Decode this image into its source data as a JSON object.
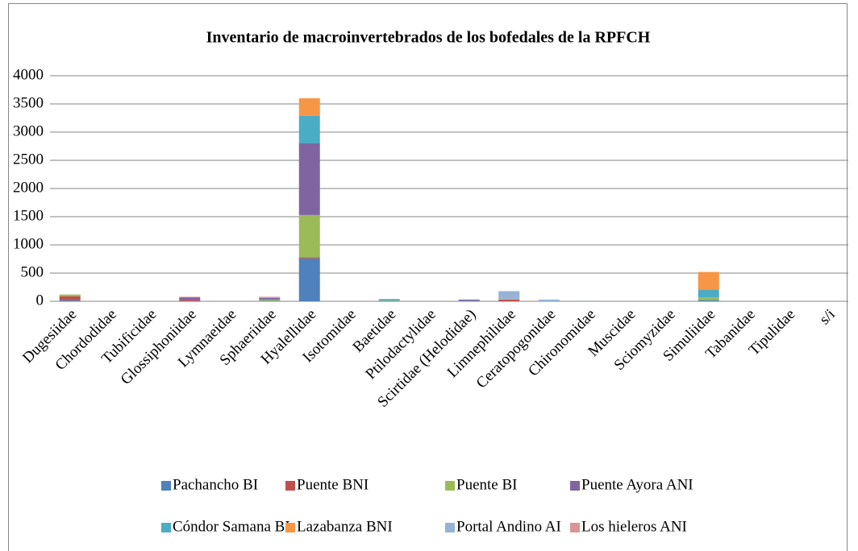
{
  "chart_data": {
    "type": "stacked_bar",
    "title": "Inventario de macroinvertebrados de los bofedales de la RPFCH",
    "categories": [
      "Dugesiidae",
      "Chordodidae",
      "Tubificidae",
      "Glossiphoniidae",
      "Lymnaeidae",
      "Sphaeriidae",
      "Hyalellidae",
      "Isotomidae",
      "Baetidae",
      "Ptilodactylidae",
      "Scirtidae (Helodidae)",
      "Limnephilidae",
      "Ceratopogonidae",
      "Chironomidae",
      "Muscidae",
      "Sciomyzidae",
      "Simuliidae",
      "Tabanidae",
      "Tipulidae",
      "s/i"
    ],
    "series": [
      {
        "name": "Pachancho BI",
        "color": "#4f81bd",
        "values": [
          20,
          0,
          0,
          0,
          0,
          10,
          760,
          0,
          10,
          0,
          10,
          0,
          0,
          2,
          0,
          0,
          20,
          0,
          0,
          0
        ]
      },
      {
        "name": "Puente BNI",
        "color": "#c0504d",
        "values": [
          70,
          0,
          0,
          20,
          0,
          0,
          20,
          0,
          0,
          0,
          0,
          30,
          0,
          0,
          0,
          0,
          0,
          0,
          0,
          0
        ]
      },
      {
        "name": "Puente BI",
        "color": "#9bbb59",
        "values": [
          30,
          0,
          0,
          0,
          0,
          20,
          750,
          0,
          10,
          0,
          0,
          0,
          0,
          0,
          0,
          0,
          50,
          0,
          0,
          0
        ]
      },
      {
        "name": "Puente Ayora ANI",
        "color": "#8064a2",
        "values": [
          0,
          0,
          0,
          50,
          0,
          30,
          1270,
          0,
          0,
          0,
          20,
          0,
          0,
          0,
          0,
          0,
          0,
          0,
          0,
          0
        ]
      },
      {
        "name": "Cóndor Samana BI",
        "color": "#4bacc6",
        "values": [
          0,
          0,
          0,
          0,
          0,
          0,
          490,
          0,
          20,
          0,
          0,
          0,
          0,
          0,
          0,
          0,
          130,
          0,
          0,
          0
        ]
      },
      {
        "name": "Lazabanza BNI",
        "color": "#f79646",
        "values": [
          0,
          0,
          0,
          0,
          0,
          0,
          310,
          0,
          0,
          0,
          0,
          10,
          0,
          0,
          0,
          0,
          320,
          0,
          0,
          0
        ]
      },
      {
        "name": "Portal Andino AI",
        "color": "#95b3d7",
        "values": [
          0,
          0,
          0,
          0,
          0,
          0,
          0,
          0,
          0,
          0,
          0,
          140,
          30,
          0,
          0,
          0,
          0,
          0,
          0,
          0
        ]
      },
      {
        "name": "Los hieleros ANI",
        "color": "#d99694",
        "values": [
          0,
          0,
          0,
          10,
          0,
          20,
          0,
          0,
          0,
          0,
          0,
          0,
          0,
          0,
          0,
          0,
          0,
          0,
          0,
          0
        ]
      }
    ],
    "ylim": [
      0,
      4000
    ],
    "yticks": [
      0,
      500,
      1000,
      1500,
      2000,
      2500,
      3000,
      3500,
      4000
    ],
    "grid": true
  }
}
